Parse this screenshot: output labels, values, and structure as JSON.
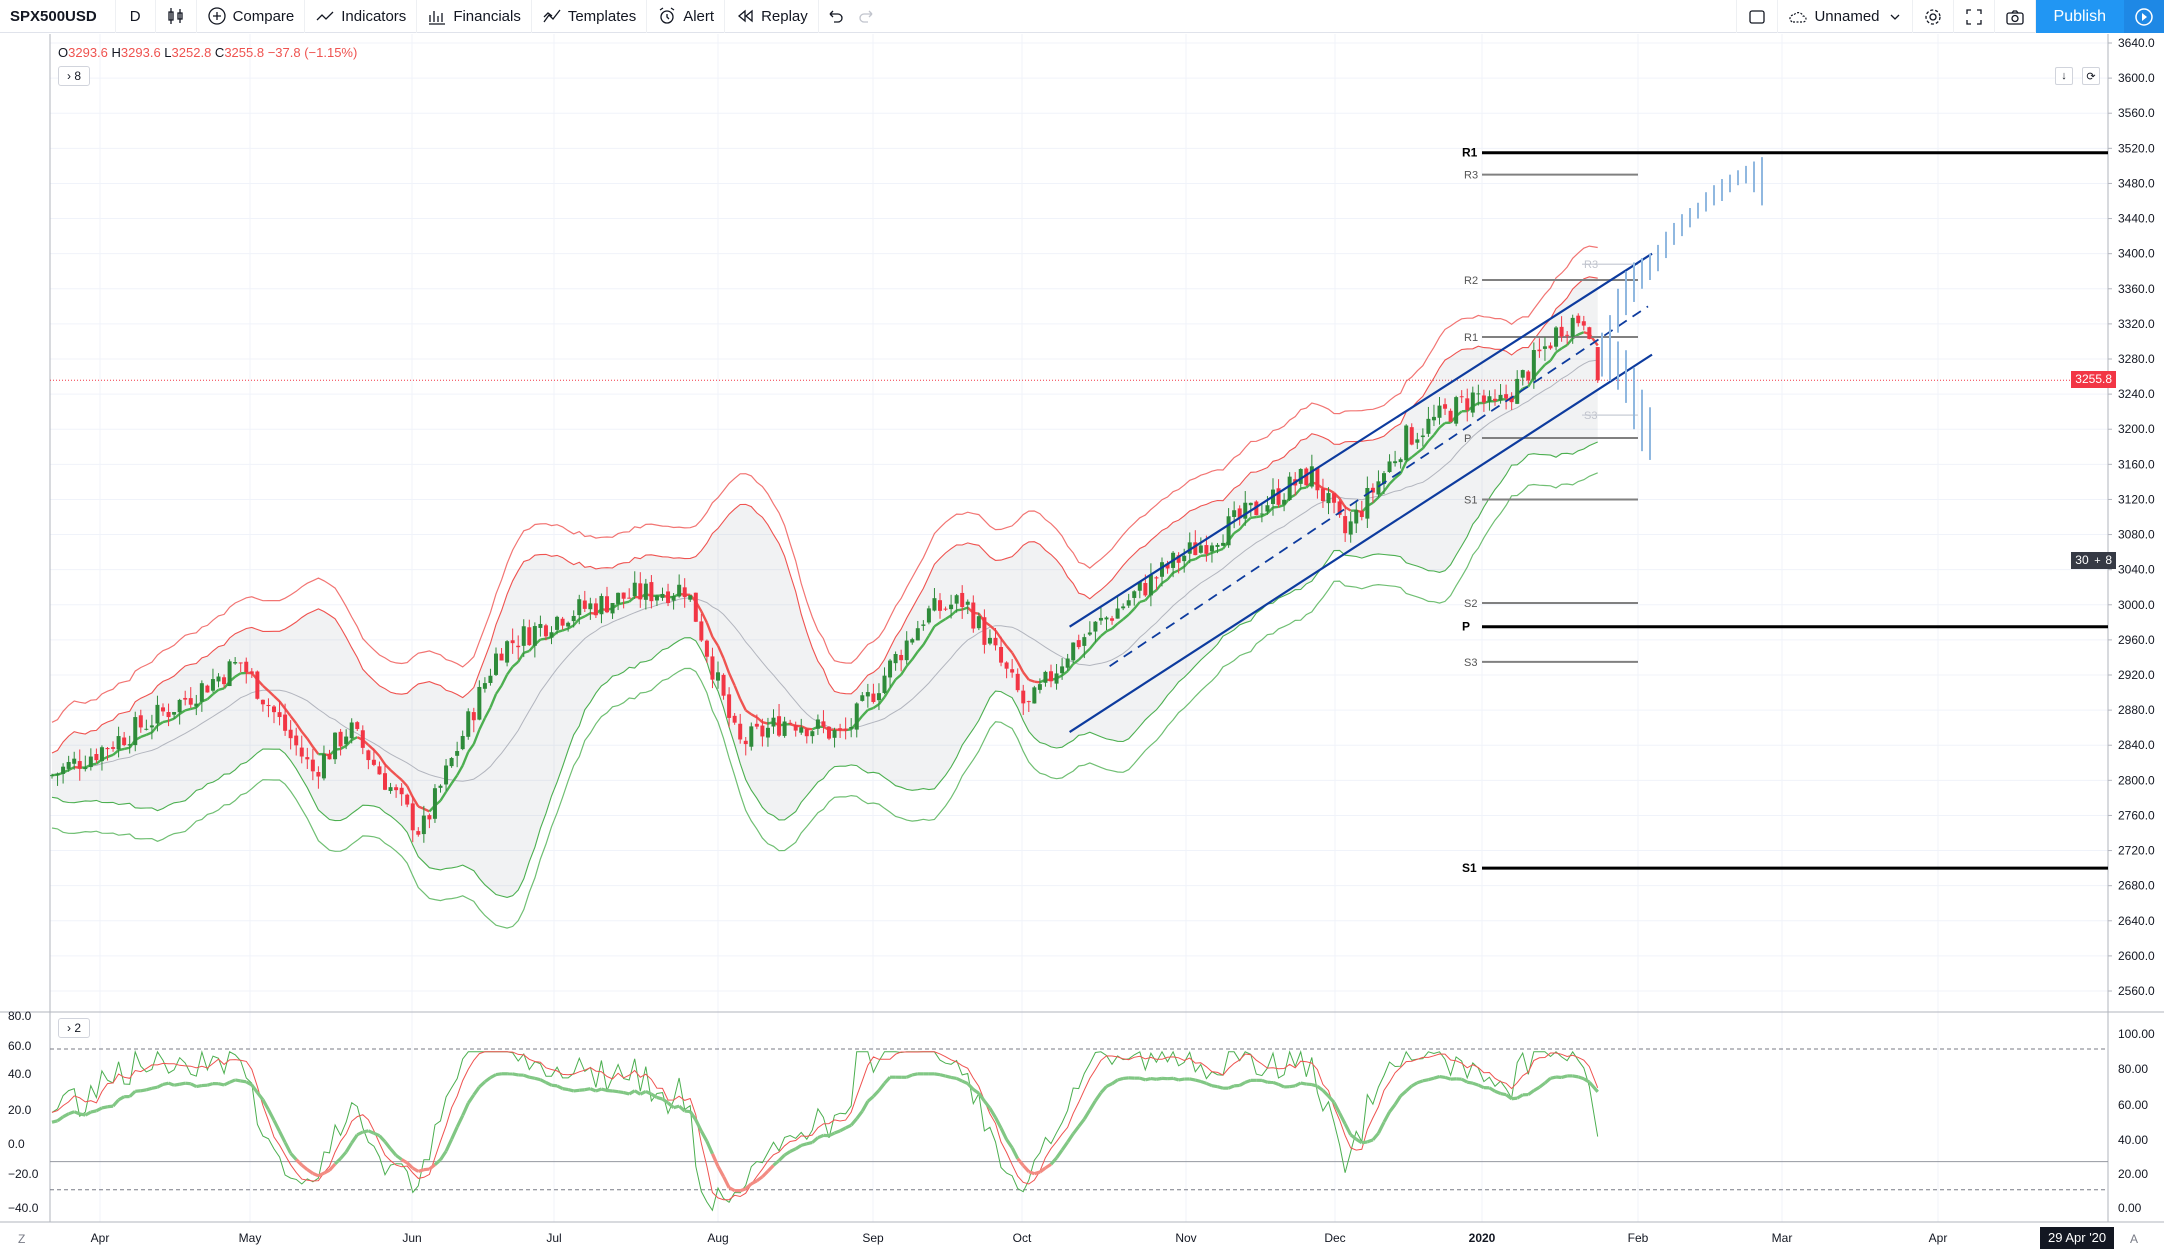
{
  "toolbar": {
    "symbol": "SPX500USD",
    "interval": "D",
    "compare": "Compare",
    "indicators": "Indicators",
    "financials": "Financials",
    "templates": "Templates",
    "alert": "Alert",
    "replay": "Replay",
    "layout_name": "Unnamed",
    "publish": "Publish"
  },
  "legend": {
    "o_label": "O",
    "o_value": "3293.6",
    "h_label": "H",
    "h_value": "3293.6",
    "l_label": "L",
    "l_value": "3252.8",
    "c_label": "C",
    "c_value": "3255.8",
    "change": "−37.8 (−1.15%)",
    "main_toggle": "8",
    "osc_toggle": "2"
  },
  "price_axis": {
    "labels": [
      "3640.0",
      "3600.0",
      "3560.0",
      "3520.0",
      "3480.0",
      "3440.0",
      "3400.0",
      "3360.0",
      "3320.0",
      "3280.0",
      "3240.0",
      "3200.0",
      "3160.0",
      "3120.0",
      "3080.0",
      "3040.0",
      "3000.0",
      "2960.0",
      "2920.0",
      "2880.0",
      "2840.0",
      "2800.0",
      "2760.0",
      "2720.0",
      "2680.0",
      "2640.0",
      "2600.0",
      "2560.0"
    ],
    "last_price": "3255.8",
    "crosshair_price": "3049.8"
  },
  "osc_axis": {
    "right_labels": [
      "100.00",
      "80.00",
      "60.00",
      "40.00",
      "20.00",
      "0.00"
    ],
    "left_labels": [
      "80.0",
      "60.0",
      "40.0",
      "20.0",
      "0.0",
      "−20.0",
      "−40.0"
    ]
  },
  "time_axis": {
    "labels": [
      "Apr",
      "May",
      "Jun",
      "Jul",
      "Aug",
      "Sep",
      "Oct",
      "Nov",
      "Dec",
      "2020",
      "Feb",
      "Mar",
      "Apr"
    ],
    "badge": "29 Apr '20"
  },
  "pivots": {
    "monthly": [
      "R1",
      "P",
      "S1"
    ],
    "weekly": [
      "R3",
      "R2",
      "R1",
      "P",
      "S1",
      "S2",
      "S3"
    ],
    "faint": [
      "R3",
      "S3"
    ]
  },
  "corners": {
    "left": "Z",
    "right": "A"
  },
  "colors": {
    "up": "#26a69a",
    "down": "#ef5350",
    "channel": "#0d3b9e",
    "bb_upper": "#ef5350",
    "bb_lower": "#4caf50",
    "projection": "#90b8e0"
  },
  "chart_data": {
    "type": "candlestick",
    "symbol": "SPX500USD",
    "interval": "D",
    "y_range": [
      2540,
      3660
    ],
    "price_path": [
      {
        "x": "Mar 25",
        "y": 2805
      },
      {
        "x": "Apr 1",
        "y": 2835
      },
      {
        "x": "Apr 15",
        "y": 2880
      },
      {
        "x": "Apr 30",
        "y": 2935
      },
      {
        "x": "May 13",
        "y": 2810
      },
      {
        "x": "May 20",
        "y": 2860
      },
      {
        "x": "Jun 3",
        "y": 2740
      },
      {
        "x": "Jun 20",
        "y": 2950
      },
      {
        "x": "Jul 3",
        "y": 2990
      },
      {
        "x": "Jul 15",
        "y": 3010
      },
      {
        "x": "Jul 26",
        "y": 3020
      },
      {
        "x": "Aug 5",
        "y": 2840
      },
      {
        "x": "Aug 15",
        "y": 2870
      },
      {
        "x": "Aug 26",
        "y": 2850
      },
      {
        "x": "Sep 12",
        "y": 2990
      },
      {
        "x": "Sep 20",
        "y": 3005
      },
      {
        "x": "Oct 2",
        "y": 2880
      },
      {
        "x": "Oct 10",
        "y": 2950
      },
      {
        "x": "Oct 30",
        "y": 3050
      },
      {
        "x": "Nov 27",
        "y": 3150
      },
      {
        "x": "Dec 3",
        "y": 3080
      },
      {
        "x": "Dec 16",
        "y": 3190
      },
      {
        "x": "Dec 31",
        "y": 3240
      },
      {
        "x": "Jan 3",
        "y": 3220
      },
      {
        "x": "Jan 8",
        "y": 3250
      },
      {
        "x": "Jan 17",
        "y": 3320
      },
      {
        "x": "Jan 22",
        "y": 3330
      },
      {
        "x": "Jan 24",
        "y": 3255.8
      }
    ],
    "pivot_levels_monthly": {
      "R1": 3515,
      "P": 2975,
      "S1": 2700
    },
    "pivot_levels_weekly": {
      "R3": 3490,
      "R2": 3370,
      "R1": 3305,
      "P": 3190,
      "S1": 3120,
      "S2": 3002,
      "S3": 2935
    },
    "oscillator_range": [
      -45,
      80
    ],
    "oscillator_levels": [
      80,
      0,
      -20
    ]
  }
}
